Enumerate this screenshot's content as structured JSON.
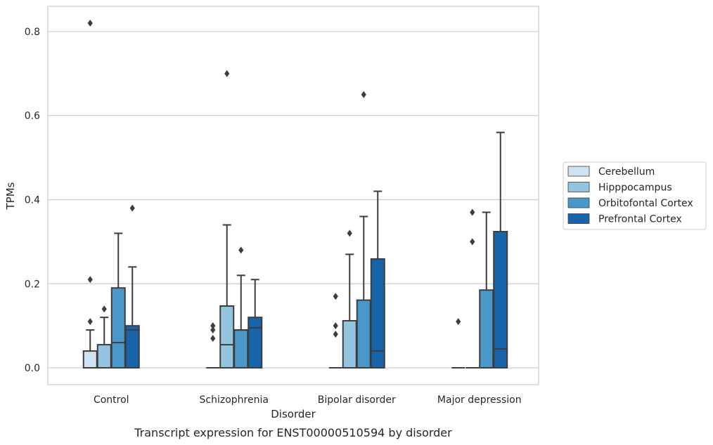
{
  "chart_data": {
    "type": "box",
    "title": "",
    "caption": "Transcript expression for ENST00000510594 by disorder",
    "xlabel": "Disorder",
    "ylabel": "TPMs",
    "ylim": [
      -0.04,
      0.86
    ],
    "yticks": [
      0.0,
      0.2,
      0.4,
      0.6,
      0.8
    ],
    "ytick_labels": [
      "0.0",
      "0.2",
      "0.4",
      "0.6",
      "0.8"
    ],
    "grid": "horizontal",
    "legend_position": "right",
    "categories": [
      "Control",
      "Schizophrenia",
      "Bipolar disorder",
      "Major depression"
    ],
    "series": [
      {
        "name": "Cerebellum",
        "color": "#d0e1f2",
        "boxes": [
          {
            "q1": 0.0,
            "median": 0.0,
            "q3": 0.04,
            "whisker_low": 0.0,
            "whisker_high": 0.09,
            "outliers": [
              0.11,
              0.21,
              0.82
            ]
          },
          {
            "q1": 0.0,
            "median": 0.0,
            "q3": 0.0,
            "whisker_low": 0.0,
            "whisker_high": 0.0,
            "outliers": [
              0.07,
              0.09,
              0.1
            ]
          },
          {
            "q1": 0.0,
            "median": 0.0,
            "q3": 0.0,
            "whisker_low": 0.0,
            "whisker_high": 0.0,
            "outliers": [
              0.08,
              0.1,
              0.17
            ]
          },
          {
            "q1": 0.0,
            "median": 0.0,
            "q3": 0.0,
            "whisker_low": 0.0,
            "whisker_high": 0.0,
            "outliers": [
              0.11
            ]
          }
        ]
      },
      {
        "name": "Hipppocampus",
        "color": "#94c4df",
        "boxes": [
          {
            "q1": 0.0,
            "median": 0.0,
            "q3": 0.055,
            "whisker_low": 0.0,
            "whisker_high": 0.12,
            "outliers": [
              0.14
            ]
          },
          {
            "q1": 0.0,
            "median": 0.055,
            "q3": 0.147,
            "whisker_low": 0.0,
            "whisker_high": 0.34,
            "outliers": [
              0.7
            ]
          },
          {
            "q1": 0.0,
            "median": 0.0,
            "q3": 0.112,
            "whisker_low": 0.0,
            "whisker_high": 0.27,
            "outliers": [
              0.32
            ]
          },
          {
            "q1": 0.0,
            "median": 0.0,
            "q3": 0.0,
            "whisker_low": 0.0,
            "whisker_high": 0.0,
            "outliers": [
              0.3,
              0.37
            ]
          }
        ]
      },
      {
        "name": "Orbitofontal Cortex",
        "color": "#4a98c9",
        "boxes": [
          {
            "q1": 0.0,
            "median": 0.06,
            "q3": 0.19,
            "whisker_low": 0.0,
            "whisker_high": 0.32,
            "outliers": []
          },
          {
            "q1": 0.0,
            "median": 0.09,
            "q3": 0.09,
            "whisker_low": 0.0,
            "whisker_high": 0.22,
            "outliers": [
              0.28
            ]
          },
          {
            "q1": 0.0,
            "median": 0.0,
            "q3": 0.161,
            "whisker_low": 0.0,
            "whisker_high": 0.36,
            "outliers": [
              0.65
            ]
          },
          {
            "q1": 0.0,
            "median": 0.0,
            "q3": 0.185,
            "whisker_low": 0.0,
            "whisker_high": 0.37,
            "outliers": []
          }
        ]
      },
      {
        "name": "Prefrontal Cortex",
        "color": "#1764ab",
        "boxes": [
          {
            "q1": 0.0,
            "median": 0.09,
            "q3": 0.1,
            "whisker_low": 0.0,
            "whisker_high": 0.24,
            "outliers": [
              0.38
            ]
          },
          {
            "q1": 0.0,
            "median": 0.095,
            "q3": 0.12,
            "whisker_low": 0.0,
            "whisker_high": 0.21,
            "outliers": []
          },
          {
            "q1": 0.0,
            "median": 0.04,
            "q3": 0.259,
            "whisker_low": 0.0,
            "whisker_high": 0.42,
            "outliers": []
          },
          {
            "q1": 0.0,
            "median": 0.045,
            "q3": 0.324,
            "whisker_low": 0.0,
            "whisker_high": 0.56,
            "outliers": []
          }
        ]
      }
    ]
  }
}
